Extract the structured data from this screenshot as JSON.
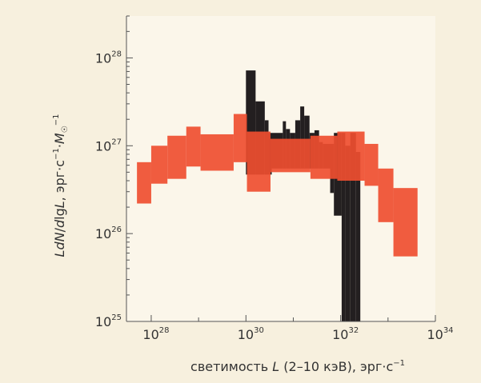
{
  "chart_data": {
    "type": "area",
    "xlabel": "светимость L (2–10 кэВ), эрг·с⁻¹",
    "ylabel": "LdN/dlgL, эрг·с⁻¹·M☉⁻¹",
    "x_scale": "log",
    "y_scale": "log",
    "xlim": [
      3e+27,
      1e+34
    ],
    "ylim": [
      1e+25,
      3e+28
    ],
    "x_ticks": [
      {
        "base": "10",
        "exp": "28",
        "value": 1e+28
      },
      {
        "base": "10",
        "exp": "30",
        "value": 1e+30
      },
      {
        "base": "10",
        "exp": "32",
        "value": 1e+32
      },
      {
        "base": "10",
        "exp": "34",
        "value": 1e+34
      }
    ],
    "y_ticks": [
      {
        "base": "10",
        "exp": "25",
        "value": 1e+25
      },
      {
        "base": "10",
        "exp": "26",
        "value": 1e+26
      },
      {
        "base": "10",
        "exp": "27",
        "value": 1e+27
      },
      {
        "base": "10",
        "exp": "28",
        "value": 1e+28
      }
    ],
    "grid": false,
    "legend": "none",
    "series": [
      {
        "color": "#231f20",
        "bins": [
          {
            "x0": 1e+30,
            "x1": 1.6e+30,
            "lo": 4.7e+26,
            "hi": 7.2e+27
          },
          {
            "x0": 1.6e+30,
            "x1": 2.5e+30,
            "lo": 4.7e+26,
            "hi": 3.2e+27
          },
          {
            "x0": 2.5e+30,
            "x1": 3e+30,
            "lo": 4.7e+26,
            "hi": 1.95e+27
          },
          {
            "x0": 3e+30,
            "x1": 3.5e+30,
            "lo": 4.7e+26,
            "hi": 1.4e+27
          },
          {
            "x0": 3.5e+30,
            "x1": 6e+30,
            "lo": 5.5e+26,
            "hi": 1.4e+27
          },
          {
            "x0": 6e+30,
            "x1": 7e+30,
            "lo": 5.5e+26,
            "hi": 1.9e+27
          },
          {
            "x0": 7e+30,
            "x1": 8.5e+30,
            "lo": 5.5e+26,
            "hi": 1.55e+27
          },
          {
            "x0": 8.5e+30,
            "x1": 1.1e+31,
            "lo": 5.5e+26,
            "hi": 1.4e+27
          },
          {
            "x0": 1.1e+31,
            "x1": 1.4e+31,
            "lo": 5.5e+26,
            "hi": 1.95e+27
          },
          {
            "x0": 1.4e+31,
            "x1": 1.7e+31,
            "lo": 5.5e+26,
            "hi": 2.8e+27
          },
          {
            "x0": 1.7e+31,
            "x1": 2.2e+31,
            "lo": 5.5e+26,
            "hi": 2.2e+27
          },
          {
            "x0": 2.2e+31,
            "x1": 2.8e+31,
            "lo": 5.5e+26,
            "hi": 1.4e+27
          },
          {
            "x0": 2.8e+31,
            "x1": 3.5e+31,
            "lo": 5.5e+26,
            "hi": 1.5e+27
          },
          {
            "x0": 3.5e+31,
            "x1": 4.2e+31,
            "lo": 5.5e+26,
            "hi": 1.1e+27
          },
          {
            "x0": 4.2e+31,
            "x1": 6e+31,
            "lo": 5.5e+26,
            "hi": 1.05e+27
          },
          {
            "x0": 6e+31,
            "x1": 7.2e+31,
            "lo": 2.9e+26,
            "hi": 1.05e+27
          },
          {
            "x0": 7.2e+31,
            "x1": 1.05e+32,
            "lo": 1.6e+26,
            "hi": 1.4e+27
          },
          {
            "x0": 1.05e+32,
            "x1": 1.25e+32,
            "lo": 1e+25,
            "hi": 1.4e+27
          },
          {
            "x0": 1.25e+32,
            "x1": 1.6e+32,
            "lo": 1e+25,
            "hi": 1e+27
          },
          {
            "x0": 1.6e+32,
            "x1": 2.1e+32,
            "lo": 1e+25,
            "hi": 1.4e+27
          },
          {
            "x0": 2.1e+32,
            "x1": 2.6e+32,
            "lo": 1e+25,
            "hi": 8.5e+26
          }
        ]
      },
      {
        "color": "#ef4e30",
        "opacity": 0.92,
        "bins": [
          {
            "x0": 5e+27,
            "x1": 1e+28,
            "lo": 2.2e+26,
            "hi": 6.5e+26
          },
          {
            "x0": 1e+28,
            "x1": 2.2e+28,
            "lo": 3.7e+26,
            "hi": 1e+27
          },
          {
            "x0": 2.2e+28,
            "x1": 5.5e+28,
            "lo": 4.2e+26,
            "hi": 1.3e+27
          },
          {
            "x0": 5.5e+28,
            "x1": 1.1e+29,
            "lo": 5.8e+26,
            "hi": 1.65e+27
          },
          {
            "x0": 1.1e+29,
            "x1": 5.5e+29,
            "lo": 5.2e+26,
            "hi": 1.35e+27
          },
          {
            "x0": 5.5e+29,
            "x1": 1.05e+30,
            "lo": 6.5e+26,
            "hi": 2.3e+27
          },
          {
            "x0": 1.05e+30,
            "x1": 3.3e+30,
            "lo": 3e+26,
            "hi": 1.45e+27
          },
          {
            "x0": 3.3e+30,
            "x1": 2.3e+31,
            "lo": 5e+26,
            "hi": 1.2e+27
          },
          {
            "x0": 2.3e+31,
            "x1": 8.5e+31,
            "lo": 4.2e+26,
            "hi": 1.3e+27
          },
          {
            "x0": 8.5e+31,
            "x1": 3.2e+32,
            "lo": 4e+26,
            "hi": 1.45e+27
          },
          {
            "x0": 3.2e+32,
            "x1": 6.2e+32,
            "lo": 3.5e+26,
            "hi": 1.05e+27
          },
          {
            "x0": 6.2e+32,
            "x1": 1.3e+33,
            "lo": 1.35e+26,
            "hi": 5.5e+26
          },
          {
            "x0": 1.3e+33,
            "x1": 4.2e+33,
            "lo": 5.5e+25,
            "hi": 3.3e+26
          }
        ]
      }
    ]
  }
}
